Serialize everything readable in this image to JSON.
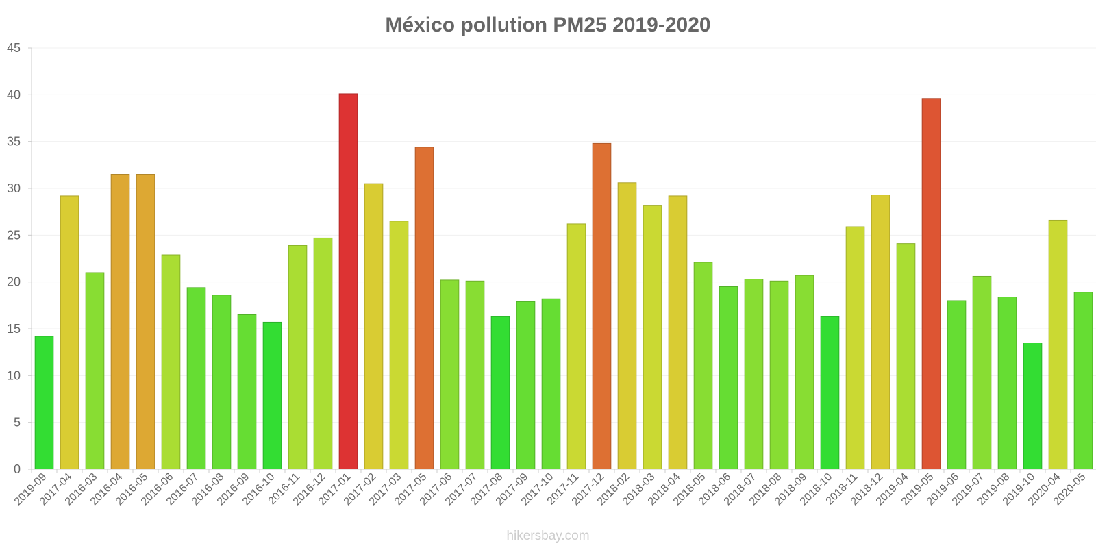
{
  "chart_data": {
    "type": "bar",
    "title": "México pollution PM25 2019-2020",
    "xlabel": "",
    "ylabel": "",
    "ylim": [
      0,
      45
    ],
    "yticks": [
      0,
      5,
      10,
      15,
      20,
      25,
      30,
      35,
      40,
      45
    ],
    "grid": true,
    "categories": [
      "2019-09",
      "2017-04",
      "2016-03",
      "2016-04",
      "2016-05",
      "2016-06",
      "2016-07",
      "2016-08",
      "2016-09",
      "2016-10",
      "2016-11",
      "2016-12",
      "2017-01",
      "2017-02",
      "2017-03",
      "2017-05",
      "2017-06",
      "2017-07",
      "2017-08",
      "2017-09",
      "2017-10",
      "2017-11",
      "2017-12",
      "2018-02",
      "2018-03",
      "2018-04",
      "2018-05",
      "2018-06",
      "2018-07",
      "2018-08",
      "2018-09",
      "2018-10",
      "2018-11",
      "2018-12",
      "2019-04",
      "2019-05",
      "2019-06",
      "2019-07",
      "2019-08",
      "2019-10",
      "2020-04",
      "2020-05"
    ],
    "values": [
      14.2,
      29.2,
      21.0,
      31.5,
      31.5,
      22.9,
      19.4,
      18.6,
      16.5,
      15.7,
      23.9,
      24.7,
      40.1,
      30.5,
      26.5,
      34.4,
      20.2,
      20.1,
      16.3,
      17.9,
      18.2,
      26.2,
      34.8,
      30.6,
      28.2,
      29.2,
      22.1,
      19.5,
      20.3,
      20.1,
      20.7,
      16.3,
      25.9,
      29.3,
      24.1,
      39.6,
      18.0,
      20.6,
      18.4,
      13.5,
      26.6,
      18.9
    ],
    "colors": [
      "#33dd33",
      "#d9cc33",
      "#88dd33",
      "#dda833",
      "#dda833",
      "#aadd33",
      "#66dd33",
      "#66dd33",
      "#66dd33",
      "#33dd33",
      "#aadd33",
      "#aadd33",
      "#dd3333",
      "#d9cc33",
      "#cad933",
      "#dd7033",
      "#88dd33",
      "#88dd33",
      "#33dd33",
      "#66dd33",
      "#66dd33",
      "#cad933",
      "#dd7033",
      "#d9cc33",
      "#cad933",
      "#d9cc33",
      "#88dd33",
      "#66dd33",
      "#88dd33",
      "#88dd33",
      "#88dd33",
      "#33dd33",
      "#cad933",
      "#d9cc33",
      "#aadd33",
      "#dd5533",
      "#66dd33",
      "#88dd33",
      "#66dd33",
      "#33dd33",
      "#cad933",
      "#66dd33"
    ]
  },
  "watermark": "hikersbay.com"
}
